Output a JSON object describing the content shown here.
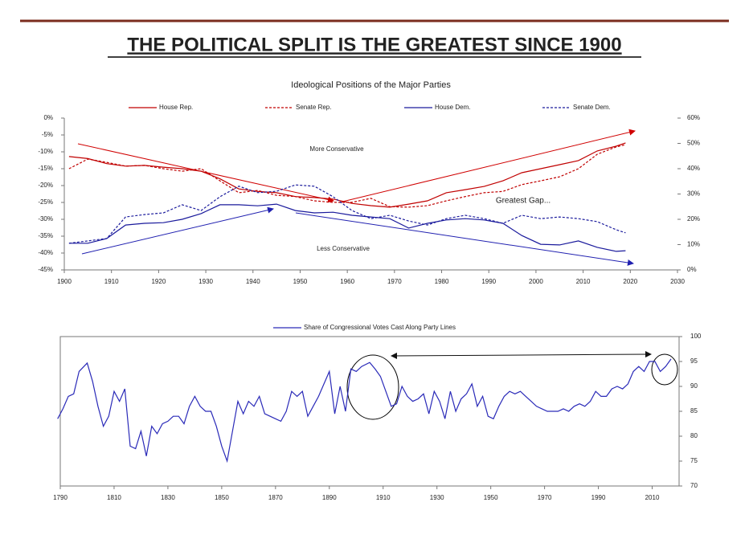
{
  "title": "THE POLITICAL SPLIT IS THE GREATEST SINCE 1900",
  "chart_data": [
    {
      "type": "line",
      "title": "Ideological Positions of the Major Parties",
      "x": [
        1901,
        1905,
        1909,
        1913,
        1917,
        1921,
        1925,
        1929,
        1933,
        1937,
        1941,
        1945,
        1949,
        1953,
        1957,
        1961,
        1965,
        1969,
        1973,
        1977,
        1981,
        1985,
        1989,
        1993,
        1997,
        2001,
        2005,
        2009,
        2013,
        2017,
        2019
      ],
      "series": [
        {
          "name": "House Rep.",
          "color": "#c00000",
          "dash": "solid",
          "axis": "y2",
          "values": [
            44.8,
            44,
            42,
            41,
            41.3,
            40.6,
            40,
            39,
            36,
            32,
            31,
            30.5,
            29,
            28.6,
            28,
            26.3,
            25.4,
            24.8,
            26,
            27.3,
            30.5,
            31.7,
            33,
            35.2,
            38.4,
            40,
            41.6,
            43.2,
            47,
            48.9,
            50.2
          ]
        },
        {
          "name": "Senate Rep.",
          "color": "#c00000",
          "dash": "dashed",
          "axis": "y2",
          "values": [
            40,
            43.8,
            42.5,
            41,
            41.3,
            40,
            39,
            40,
            35.2,
            30.5,
            31.4,
            29.5,
            29,
            27.3,
            26.7,
            26.7,
            28.3,
            25,
            24.8,
            25.4,
            27.3,
            29,
            30.5,
            31,
            33.7,
            35.2,
            36.8,
            40,
            45.7,
            48.6,
            49.5
          ]
        },
        {
          "name": "House Dem.",
          "color": "#1a1a9c",
          "dash": "solid",
          "values": [
            -37.1,
            -37.1,
            -35.7,
            -31.7,
            -31.2,
            -31,
            -30,
            -28.3,
            -25.7,
            -25.7,
            -26,
            -25.5,
            -27.4,
            -28.1,
            -27.9,
            -28.8,
            -29.3,
            -29.8,
            -32.6,
            -31.2,
            -30.2,
            -29.8,
            -30.2,
            -31.2,
            -34.8,
            -37.4,
            -37.6,
            -36.4,
            -38.3,
            -39.5,
            -39.3
          ]
        },
        {
          "name": "Senate Dem.",
          "color": "#1a1a9c",
          "dash": "dashed",
          "values": [
            -37.1,
            -36.4,
            -35.7,
            -29.3,
            -28.6,
            -28.1,
            -25.7,
            -27.4,
            -23.3,
            -20.2,
            -22.1,
            -21.7,
            -19.8,
            -20.2,
            -23.3,
            -27.4,
            -29.8,
            -28.8,
            -30.5,
            -31.7,
            -29.8,
            -28.8,
            -29.8,
            -31.2,
            -28.8,
            -29.8,
            -29.3,
            -29.8,
            -30.7,
            -33.1,
            -34
          ]
        }
      ],
      "annotations": [
        "More Conservative",
        "Greatest Gap...",
        "Less Conservative"
      ],
      "xlim": [
        1900,
        2030
      ],
      "xticks": [
        1900,
        1910,
        1920,
        1930,
        1940,
        1950,
        1960,
        1970,
        1980,
        1990,
        2000,
        2010,
        2020,
        2030
      ],
      "ylim": [
        -45,
        0
      ],
      "yticks": [
        {
          "value": 0,
          "label": "0%"
        },
        {
          "value": -5,
          "label": "-5%"
        },
        {
          "value": -10,
          "label": "-10%"
        },
        {
          "value": -15,
          "label": "-15%"
        },
        {
          "value": -20,
          "label": "-20%"
        },
        {
          "value": -25,
          "label": "-25%"
        },
        {
          "value": -30,
          "label": "-30%"
        },
        {
          "value": -35,
          "label": "-35%"
        },
        {
          "value": -40,
          "label": "-40%"
        },
        {
          "value": -45,
          "label": "-45%"
        }
      ],
      "y2lim": [
        0,
        60
      ],
      "y2ticks": [
        {
          "value": 0,
          "label": "0%"
        },
        {
          "value": 10,
          "label": "10%"
        },
        {
          "value": 20,
          "label": "20%"
        },
        {
          "value": 30,
          "label": "30%"
        },
        {
          "value": 40,
          "label": "40%"
        },
        {
          "value": 50,
          "label": "50%"
        },
        {
          "value": 60,
          "label": "60%"
        }
      ],
      "yaxis_side": "left"
    },
    {
      "type": "line",
      "x": [
        1789,
        1791,
        1793,
        1795,
        1797,
        1800,
        1802,
        1804,
        1806,
        1808,
        1810,
        1812,
        1814,
        1816,
        1818,
        1820,
        1822,
        1824,
        1826,
        1828,
        1830,
        1832,
        1834,
        1836,
        1838,
        1840,
        1842,
        1844,
        1846,
        1848,
        1850,
        1852,
        1854,
        1856,
        1858,
        1860,
        1862,
        1864,
        1866,
        1868,
        1870,
        1872,
        1874,
        1876,
        1878,
        1880,
        1882,
        1884,
        1886,
        1890,
        1892,
        1894,
        1896,
        1898,
        1900,
        1902,
        1905,
        1907,
        1909,
        1911,
        1913,
        1915,
        1917,
        1919,
        1921,
        1923,
        1925,
        1927,
        1929,
        1931,
        1933,
        1935,
        1937,
        1939,
        1941,
        1943,
        1945,
        1947,
        1949,
        1951,
        1953,
        1955,
        1957,
        1959,
        1961,
        1963,
        1965,
        1967,
        1969,
        1971,
        1973,
        1975,
        1977,
        1979,
        1981,
        1983,
        1985,
        1987,
        1989,
        1991,
        1993,
        1995,
        1997,
        1999,
        2001,
        2003,
        2005,
        2007,
        2009,
        2011,
        2013,
        2015,
        2017
      ],
      "series": [
        {
          "name": "Share of Congressional Votes Cast Along Party Lines",
          "color": "#2a2ab8",
          "dash": "solid",
          "values": [
            83.5,
            85.5,
            88,
            88.5,
            93,
            94.7,
            91,
            86,
            82,
            84,
            89,
            87,
            89.5,
            78,
            77.5,
            81,
            76,
            82,
            80.5,
            82.5,
            83,
            84,
            84,
            82.5,
            86,
            88,
            86,
            85,
            85,
            82,
            78,
            75,
            81,
            87,
            84.5,
            87,
            86,
            88,
            84.5,
            84,
            83.5,
            83,
            85,
            89,
            88,
            89,
            84,
            86,
            88,
            93,
            84.5,
            90,
            85,
            93.5,
            93,
            94,
            94.8,
            93.5,
            92,
            89,
            86,
            86.5,
            90,
            88,
            87,
            87.5,
            88.5,
            84.5,
            89,
            87,
            83.5,
            89,
            85,
            87.5,
            88.5,
            90.5,
            86,
            88,
            84,
            83.5,
            86,
            88,
            89,
            88.5,
            89,
            88,
            87,
            86,
            85.5,
            85,
            85,
            85,
            85.5,
            85,
            86,
            86.5,
            86,
            87,
            89,
            88,
            88,
            89.5,
            90,
            89.5,
            90.5,
            93,
            94,
            93,
            95,
            95,
            93,
            94,
            95.5
          ]
        }
      ],
      "xlim": [
        1790,
        2020
      ],
      "xticks": [
        1790,
        1810,
        1830,
        1850,
        1870,
        1890,
        1910,
        1930,
        1950,
        1970,
        1990,
        2010
      ],
      "ylim": [
        70,
        100
      ],
      "yticks": [
        70,
        75,
        80,
        85,
        90,
        95,
        100
      ],
      "yaxis_side": "right"
    }
  ]
}
